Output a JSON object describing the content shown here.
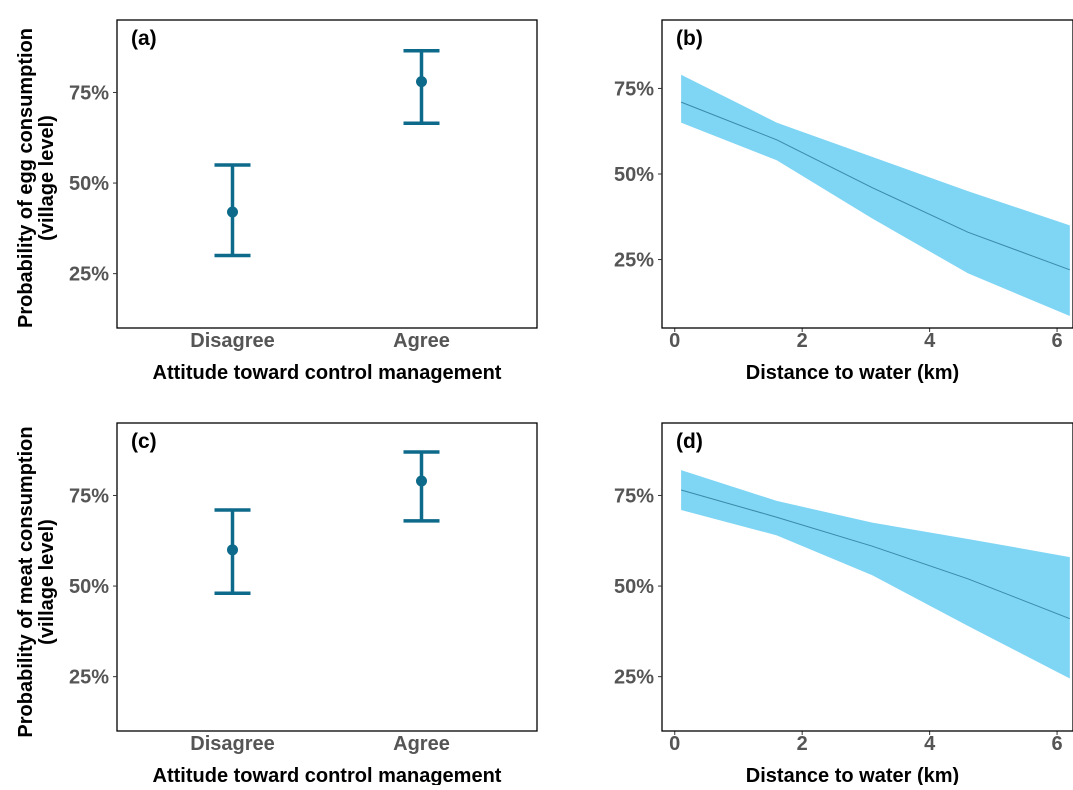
{
  "figure": {
    "ylabel_top_line1": "Probability of egg consumption",
    "ylabel_top_line2": "(village level)",
    "ylabel_bottom_line1": "Probability of meat consumption",
    "ylabel_bottom_line2": "(village level)"
  },
  "colors": {
    "errorbar": "#0e6a8a",
    "ribbon": "#7fd5f4",
    "ribbon_line": "#3a8aa8"
  },
  "chart_data": [
    {
      "panel": "(a)",
      "type": "errorbar",
      "categories": [
        "Disagree",
        "Agree"
      ],
      "estimate": [
        0.42,
        0.78
      ],
      "lower": [
        0.3,
        0.665
      ],
      "upper": [
        0.55,
        0.865
      ],
      "xlabel": "Attitude toward control management",
      "ylabel": "Probability of egg consumption (village level)",
      "ylim": [
        0.1,
        0.95
      ],
      "yticks": [
        0.25,
        0.5,
        0.75
      ],
      "ytick_labels": [
        "25%",
        "50%",
        "75%"
      ]
    },
    {
      "panel": "(b)",
      "type": "area",
      "x": [
        0.1,
        1.6,
        3.1,
        4.6,
        6.2
      ],
      "fit": [
        0.71,
        0.6,
        0.46,
        0.33,
        0.22
      ],
      "lower": [
        0.65,
        0.54,
        0.37,
        0.21,
        0.085
      ],
      "upper": [
        0.79,
        0.65,
        0.55,
        0.45,
        0.35
      ],
      "xlabel": "Distance to water (km)",
      "xlim": [
        -0.2,
        6.25
      ],
      "xticks": [
        0,
        2,
        4,
        6
      ],
      "ylim": [
        0.05,
        0.95
      ],
      "yticks": [
        0.25,
        0.5,
        0.75
      ],
      "ytick_labels": [
        "25%",
        "50%",
        "75%"
      ]
    },
    {
      "panel": "(c)",
      "type": "errorbar",
      "categories": [
        "Disagree",
        "Agree"
      ],
      "estimate": [
        0.6,
        0.79
      ],
      "lower": [
        0.48,
        0.68
      ],
      "upper": [
        0.71,
        0.87
      ],
      "xlabel": "Attitude toward control management",
      "ylabel": "Probability of meat consumption (village level)",
      "ylim": [
        0.1,
        0.95
      ],
      "yticks": [
        0.25,
        0.5,
        0.75
      ],
      "ytick_labels": [
        "25%",
        "50%",
        "75%"
      ]
    },
    {
      "panel": "(d)",
      "type": "area",
      "x": [
        0.1,
        1.6,
        3.1,
        4.6,
        6.2
      ],
      "fit": [
        0.765,
        0.69,
        0.61,
        0.52,
        0.41
      ],
      "lower": [
        0.71,
        0.64,
        0.53,
        0.39,
        0.245
      ],
      "upper": [
        0.82,
        0.735,
        0.675,
        0.63,
        0.58
      ],
      "xlabel": "Distance to water (km)",
      "xlim": [
        -0.2,
        6.25
      ],
      "xticks": [
        0,
        2,
        4,
        6
      ],
      "ylim": [
        0.1,
        0.95
      ],
      "yticks": [
        0.25,
        0.5,
        0.75
      ],
      "ytick_labels": [
        "25%",
        "50%",
        "75%"
      ]
    }
  ]
}
